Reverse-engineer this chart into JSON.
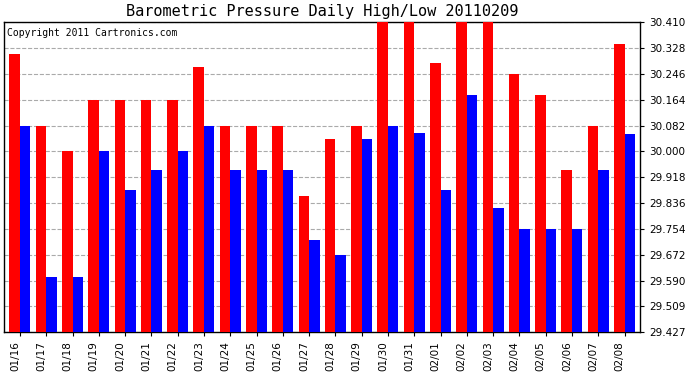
{
  "title": "Barometric Pressure Daily High/Low 20110209",
  "copyright": "Copyright 2011 Cartronics.com",
  "dates": [
    "01/16",
    "01/17",
    "01/18",
    "01/19",
    "01/20",
    "01/21",
    "01/22",
    "01/23",
    "01/24",
    "01/25",
    "01/26",
    "01/27",
    "01/28",
    "01/29",
    "01/30",
    "01/31",
    "02/01",
    "02/02",
    "02/03",
    "02/04",
    "02/05",
    "02/06",
    "02/07",
    "02/08"
  ],
  "highs": [
    30.31,
    30.082,
    30.0,
    30.164,
    30.164,
    30.164,
    30.164,
    30.268,
    30.082,
    30.082,
    30.082,
    29.86,
    30.04,
    30.082,
    30.42,
    30.41,
    30.28,
    30.42,
    30.42,
    30.246,
    30.18,
    29.94,
    30.082,
    30.34
  ],
  "lows": [
    30.082,
    29.6,
    29.6,
    30.0,
    29.877,
    29.94,
    30.0,
    30.082,
    29.94,
    29.94,
    29.94,
    29.718,
    29.672,
    30.04,
    30.082,
    30.06,
    29.877,
    30.18,
    29.82,
    29.754,
    29.754,
    29.754,
    29.94,
    30.055
  ],
  "high_color": "#ff0000",
  "low_color": "#0000ff",
  "background_color": "#ffffff",
  "grid_color": "#aaaaaa",
  "ylim_min": 29.427,
  "ylim_max": 30.41,
  "yticks": [
    29.427,
    29.509,
    29.59,
    29.672,
    29.754,
    29.836,
    29.918,
    30.0,
    30.082,
    30.164,
    30.246,
    30.328,
    30.41
  ],
  "title_fontsize": 11,
  "copyright_fontsize": 7,
  "tick_fontsize": 7.5
}
